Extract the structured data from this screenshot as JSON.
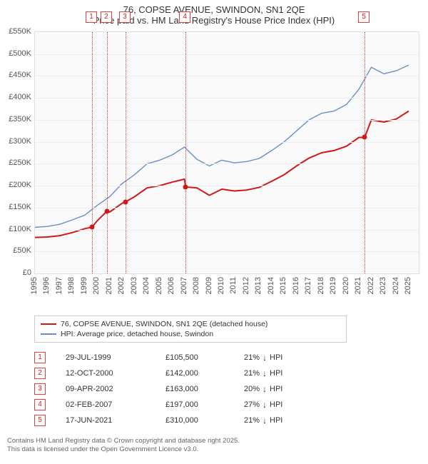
{
  "title": "76, COPSE AVENUE, SWINDON, SN1 2QE",
  "subtitle": "Price paid vs. HM Land Registry's House Price Index (HPI)",
  "chart": {
    "type": "line",
    "background_color": "#fafafa",
    "border_color": "#e0e0e0",
    "grid_color": "#eeeeee",
    "title_fontsize": 13,
    "axis_fontsize": 11,
    "x_min": 1995,
    "x_max": 2025.8,
    "x_ticks": [
      1995,
      1996,
      1997,
      1998,
      1999,
      2000,
      2001,
      2002,
      2003,
      2004,
      2005,
      2006,
      2007,
      2008,
      2009,
      2010,
      2011,
      2012,
      2013,
      2014,
      2015,
      2016,
      2017,
      2018,
      2019,
      2020,
      2021,
      2022,
      2023,
      2024,
      2025
    ],
    "y_min": 0,
    "y_max": 550000,
    "y_ticks": [
      0,
      50000,
      100000,
      150000,
      200000,
      250000,
      300000,
      350000,
      400000,
      450000,
      500000,
      550000
    ],
    "y_tick_labels": [
      "£0",
      "£50K",
      "£100K",
      "£150K",
      "£200K",
      "£250K",
      "£300K",
      "£350K",
      "£400K",
      "£450K",
      "£500K",
      "£550K"
    ],
    "series": [
      {
        "name": "HPI: Average price, detached house, Swindon",
        "color": "#6a8fc7",
        "line_width": 1.4,
        "data": [
          [
            1995,
            105000
          ],
          [
            1996,
            107000
          ],
          [
            1997,
            112000
          ],
          [
            1998,
            122000
          ],
          [
            1999,
            133000
          ],
          [
            2000,
            155000
          ],
          [
            2001,
            175000
          ],
          [
            2002,
            205000
          ],
          [
            2003,
            225000
          ],
          [
            2004,
            250000
          ],
          [
            2005,
            258000
          ],
          [
            2006,
            270000
          ],
          [
            2007,
            288000
          ],
          [
            2008,
            260000
          ],
          [
            2009,
            245000
          ],
          [
            2010,
            258000
          ],
          [
            2011,
            252000
          ],
          [
            2012,
            255000
          ],
          [
            2013,
            262000
          ],
          [
            2014,
            280000
          ],
          [
            2015,
            300000
          ],
          [
            2016,
            325000
          ],
          [
            2017,
            350000
          ],
          [
            2018,
            365000
          ],
          [
            2019,
            370000
          ],
          [
            2020,
            385000
          ],
          [
            2021,
            420000
          ],
          [
            2022,
            470000
          ],
          [
            2023,
            455000
          ],
          [
            2024,
            462000
          ],
          [
            2025,
            475000
          ]
        ]
      },
      {
        "name": "76, COPSE AVENUE, SWINDON, SN1 2QE (detached house)",
        "color": "#d01818",
        "line_width": 2.0,
        "data": [
          [
            1995,
            82000
          ],
          [
            1996,
            83000
          ],
          [
            1997,
            86000
          ],
          [
            1998,
            93000
          ],
          [
            1999,
            102000
          ],
          [
            1999.58,
            105500
          ],
          [
            2000,
            120000
          ],
          [
            2000.78,
            142000
          ],
          [
            2001,
            140000
          ],
          [
            2002,
            160000
          ],
          [
            2002.27,
            163000
          ],
          [
            2003,
            175000
          ],
          [
            2004,
            195000
          ],
          [
            2005,
            200000
          ],
          [
            2006,
            208000
          ],
          [
            2007,
            215000
          ],
          [
            2007.09,
            197000
          ],
          [
            2008,
            195000
          ],
          [
            2009,
            178000
          ],
          [
            2010,
            192000
          ],
          [
            2011,
            188000
          ],
          [
            2012,
            190000
          ],
          [
            2013,
            196000
          ],
          [
            2014,
            210000
          ],
          [
            2015,
            225000
          ],
          [
            2016,
            245000
          ],
          [
            2017,
            263000
          ],
          [
            2018,
            275000
          ],
          [
            2019,
            280000
          ],
          [
            2020,
            290000
          ],
          [
            2021,
            310000
          ],
          [
            2021.46,
            310000
          ],
          [
            2022,
            350000
          ],
          [
            2023,
            345000
          ],
          [
            2024,
            352000
          ],
          [
            2025,
            370000
          ]
        ]
      }
    ],
    "markers": [
      {
        "n": "1",
        "x": 1999.58
      },
      {
        "n": "2",
        "x": 2000.78
      },
      {
        "n": "3",
        "x": 2002.27
      },
      {
        "n": "4",
        "x": 2007.09
      },
      {
        "n": "5",
        "x": 2021.46
      }
    ],
    "marker_color": "#e04040",
    "sale_points": [
      [
        1999.58,
        105500
      ],
      [
        2000.78,
        142000
      ],
      [
        2002.27,
        163000
      ],
      [
        2007.09,
        197000
      ],
      [
        2021.46,
        310000
      ]
    ]
  },
  "legend": {
    "border_color": "#cccccc",
    "fontsize": 10.5,
    "items": [
      {
        "label": "76, COPSE AVENUE, SWINDON, SN1 2QE (detached house)",
        "color": "#d01818",
        "width": 2
      },
      {
        "label": "HPI: Average price, detached house, Swindon",
        "color": "#6a8fc7",
        "width": 2
      }
    ]
  },
  "transactions": {
    "fontsize": 11,
    "hpi_suffix": "HPI",
    "rows": [
      {
        "n": "1",
        "date": "29-JUL-1999",
        "price": "£105,500",
        "delta": "21%",
        "dir": "down"
      },
      {
        "n": "2",
        "date": "12-OCT-2000",
        "price": "£142,000",
        "delta": "21%",
        "dir": "down"
      },
      {
        "n": "3",
        "date": "09-APR-2002",
        "price": "£163,000",
        "delta": "20%",
        "dir": "down"
      },
      {
        "n": "4",
        "date": "02-FEB-2007",
        "price": "£197,000",
        "delta": "27%",
        "dir": "down"
      },
      {
        "n": "5",
        "date": "17-JUN-2021",
        "price": "£310,000",
        "delta": "21%",
        "dir": "down"
      }
    ]
  },
  "attribution": {
    "line1": "Contains HM Land Registry data © Crown copyright and database right 2025.",
    "line2": "This data is licensed under the Open Government Licence v3.0."
  }
}
